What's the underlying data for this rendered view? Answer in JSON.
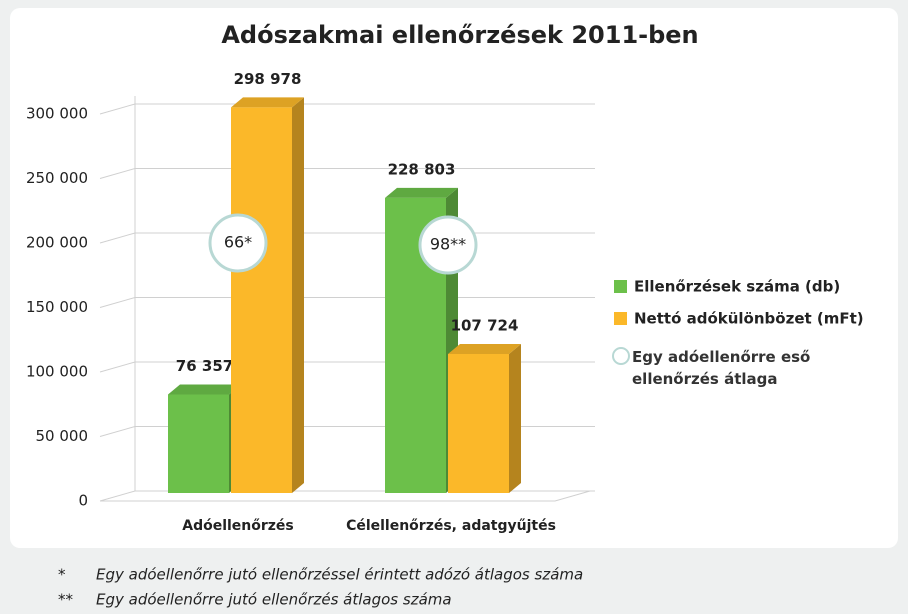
{
  "chart_data": {
    "type": "bar3d",
    "title": "Adószakmai ellenőrzések 2011-ben",
    "categories": [
      "Adóellenőrzés",
      "Célellenőrzés, adatgyűjtés"
    ],
    "series": [
      {
        "name": "Ellenőrzések száma (db)",
        "color": "#6cc04a",
        "values": [
          76357,
          228803
        ],
        "value_labels": [
          "76 357",
          "228 803"
        ]
      },
      {
        "name": "Nettó adókülönbözet (mFt)",
        "color": "#fbb829",
        "values": [
          298978,
          107724
        ],
        "value_labels": [
          "298 978",
          "107 724"
        ]
      }
    ],
    "ylim": [
      0,
      300000
    ],
    "yticks": [
      0,
      {
        "value": 50000,
        "label": "50 000"
      },
      {
        "value": 100000,
        "label": "100 000"
      },
      {
        "value": 150000,
        "label": "150 000"
      },
      {
        "value": 200000,
        "label": "200 000"
      },
      {
        "value": 250000,
        "label": "250 000"
      },
      {
        "value": 300000,
        "label": "300 000"
      }
    ],
    "grid": true,
    "annotations": [
      {
        "label": "66*"
      },
      {
        "label": "98**"
      }
    ],
    "annotation_legend": "Egy adóellenőrre eső ellenőrzés átlaga",
    "footnotes": [
      {
        "marker": "*",
        "text": "Egy adóellenőrre jutó ellenőrzéssel érintett adózó átlagos száma"
      },
      {
        "marker": "**",
        "text": "Egy adóellenőrre jutó ellenőrzés átlagos száma"
      }
    ]
  }
}
